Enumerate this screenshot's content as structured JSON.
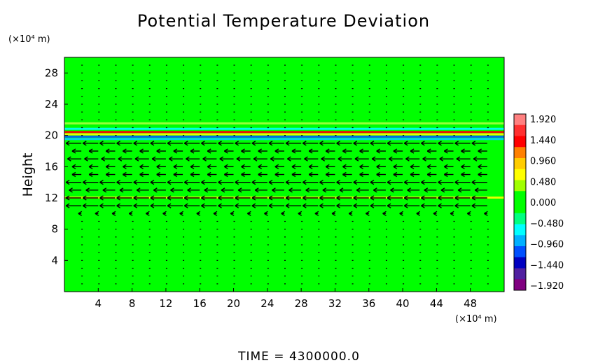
{
  "chart_data": {
    "type": "heatmap",
    "title": "Potential Temperature Deviation",
    "ylabel": "Height",
    "y_unit_label": "(×10⁴ m)",
    "x_unit_label": "(×10⁴ m)",
    "xlim": [
      0,
      52
    ],
    "ylim": [
      0,
      30
    ],
    "x_ticks": [
      "4",
      "8",
      "12",
      "16",
      "20",
      "24",
      "28",
      "32",
      "36",
      "40",
      "44",
      "48"
    ],
    "y_ticks": [
      "4",
      "8",
      "12",
      "16",
      "20",
      "24",
      "28"
    ],
    "colorbar": {
      "labels": [
        "1.920",
        "1.440",
        "0.960",
        "0.480",
        "0.000",
        "-0.480",
        "-0.960",
        "-1.440",
        "-1.920"
      ],
      "min": -1.92,
      "max": 1.92,
      "colors_top_to_bottom": [
        "#ff8080",
        "#ff3030",
        "#ff0000",
        "#ff8000",
        "#ffcc00",
        "#ffff00",
        "#a0ff00",
        "#00ff00",
        "#00ff00",
        "#00ff80",
        "#00ffff",
        "#00b0ff",
        "#0050ff",
        "#0000c0",
        "#5020a0",
        "#800080"
      ]
    },
    "background_color": "#00ff00",
    "bands": [
      {
        "y": 21.5,
        "color": "#a8ff40"
      },
      {
        "y": 20.8,
        "color": "#00ffff"
      },
      {
        "y": 20.4,
        "color": "#ff0000"
      },
      {
        "y": 20.1,
        "color": "#ffff00"
      },
      {
        "y": 19.8,
        "color": "#0060ff"
      },
      {
        "y": 19.5,
        "color": "#00d0ff"
      },
      {
        "y": 12.0,
        "color": "#ffff00"
      }
    ],
    "wind_rows": [
      {
        "y": 19,
        "u": -1.0
      },
      {
        "y": 17.5,
        "u": -0.6
      },
      {
        "y": 16.5,
        "u": -0.9
      },
      {
        "y": 15.5,
        "u": -0.6
      },
      {
        "y": 14,
        "u": -1.0
      },
      {
        "y": 13,
        "u": -0.8
      },
      {
        "y": 11.5,
        "u": -1.0
      },
      {
        "y": 10,
        "u": -0.2
      }
    ],
    "footer": "TIME  =  4300000.0"
  }
}
